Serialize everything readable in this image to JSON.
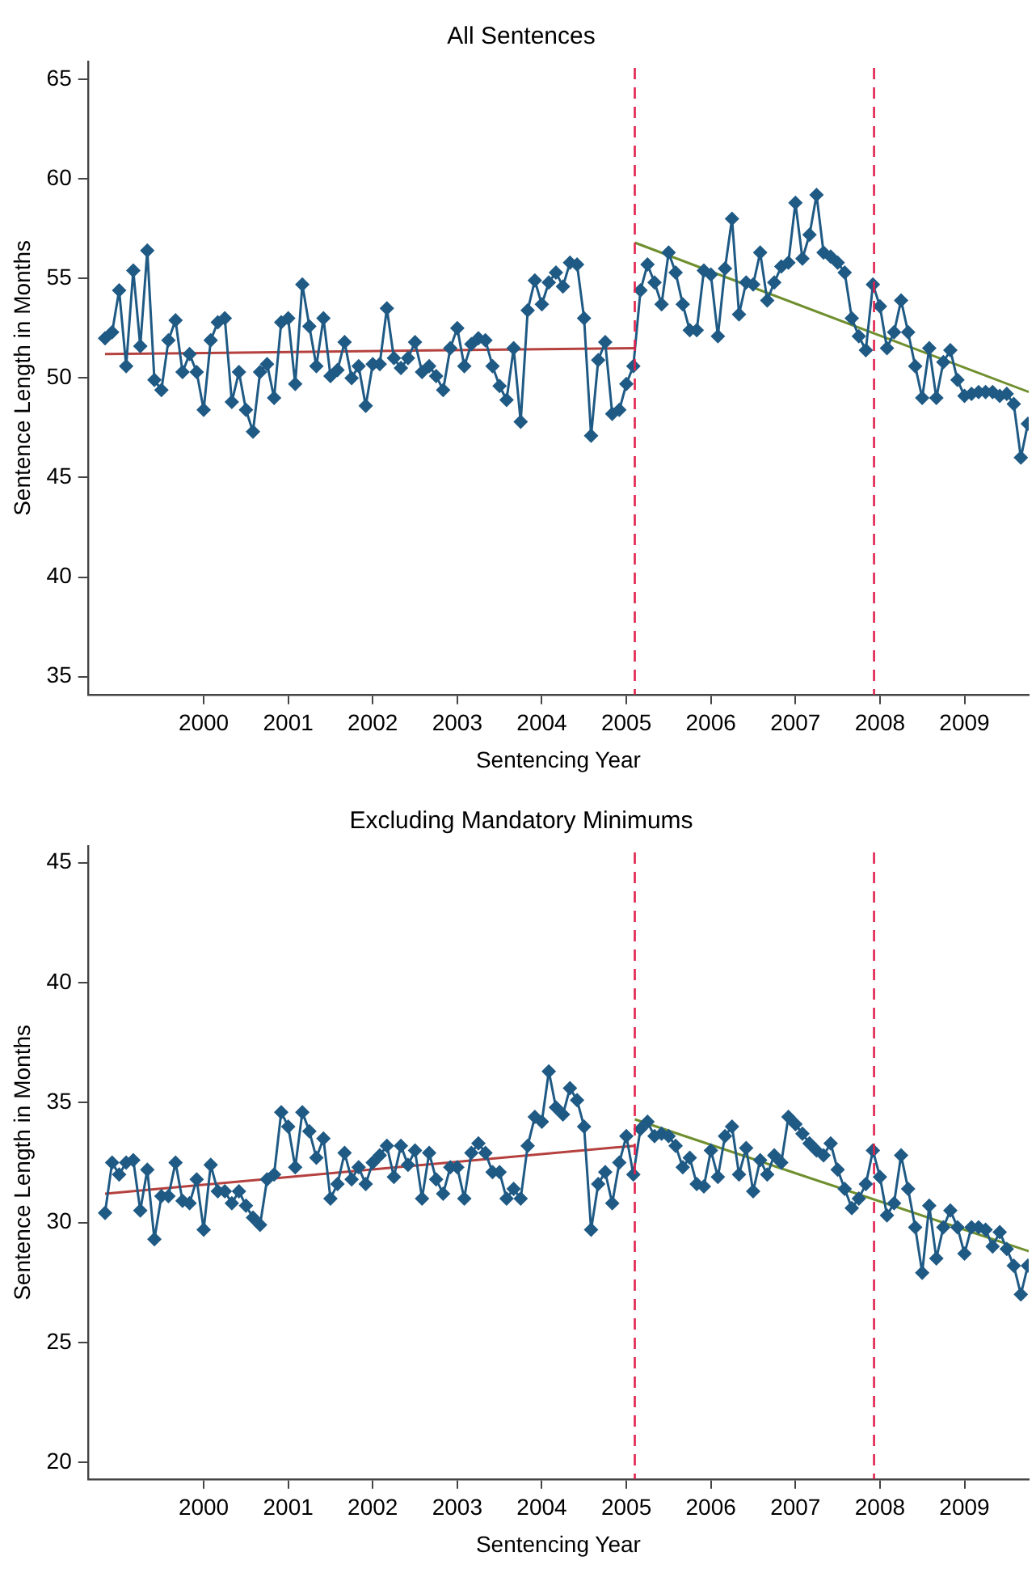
{
  "chart_data": [
    {
      "type": "line",
      "title": "All Sentences",
      "xlabel": "Sentencing Year",
      "ylabel": "Sentence Length in Months",
      "marker": "diamond",
      "grid": false,
      "legend": false,
      "x": [
        1998.833,
        1998.917,
        1999.0,
        1999.083,
        1999.167,
        1999.25,
        1999.333,
        1999.417,
        1999.5,
        1999.583,
        1999.667,
        1999.75,
        1999.833,
        1999.917,
        2000.0,
        2000.083,
        2000.167,
        2000.25,
        2000.333,
        2000.417,
        2000.5,
        2000.583,
        2000.667,
        2000.75,
        2000.833,
        2000.917,
        2001.0,
        2001.083,
        2001.167,
        2001.25,
        2001.333,
        2001.417,
        2001.5,
        2001.583,
        2001.667,
        2001.75,
        2001.833,
        2001.917,
        2002.0,
        2002.083,
        2002.167,
        2002.25,
        2002.333,
        2002.417,
        2002.5,
        2002.583,
        2002.667,
        2002.75,
        2002.833,
        2002.917,
        2003.0,
        2003.083,
        2003.167,
        2003.25,
        2003.333,
        2003.417,
        2003.5,
        2003.583,
        2003.667,
        2003.75,
        2003.833,
        2003.917,
        2004.0,
        2004.083,
        2004.167,
        2004.25,
        2004.333,
        2004.417,
        2004.5,
        2004.583,
        2004.667,
        2004.75,
        2004.833,
        2004.917,
        2005.0,
        2005.083,
        2005.167,
        2005.25,
        2005.333,
        2005.417,
        2005.5,
        2005.583,
        2005.667,
        2005.75,
        2005.833,
        2005.917,
        2006.0,
        2006.083,
        2006.167,
        2006.25,
        2006.333,
        2006.417,
        2006.5,
        2006.583,
        2006.667,
        2006.75,
        2006.833,
        2006.917,
        2007.0,
        2007.083,
        2007.167,
        2007.25,
        2007.333,
        2007.417,
        2007.5,
        2007.583,
        2007.667,
        2007.75,
        2007.833,
        2007.917,
        2008.0,
        2008.083,
        2008.167,
        2008.25,
        2008.333,
        2008.417,
        2008.5,
        2008.583,
        2008.667,
        2008.75,
        2008.833,
        2008.917,
        2009.0,
        2009.083,
        2009.167,
        2009.25,
        2009.333,
        2009.417,
        2009.5,
        2009.583,
        2009.667,
        2009.75
      ],
      "series": [
        {
          "color": "#1f5a85",
          "values": [
            52.0,
            52.3,
            54.4,
            50.6,
            55.4,
            51.6,
            56.4,
            49.9,
            49.4,
            51.9,
            52.9,
            50.3,
            51.2,
            50.3,
            48.4,
            51.9,
            52.8,
            53.0,
            48.8,
            50.3,
            48.4,
            47.3,
            50.3,
            50.7,
            49.0,
            52.8,
            53.0,
            49.7,
            54.7,
            52.6,
            50.6,
            53.0,
            50.1,
            50.4,
            51.8,
            50.0,
            50.6,
            48.6,
            50.7,
            50.7,
            53.5,
            51.0,
            50.5,
            51.0,
            51.8,
            50.3,
            50.6,
            50.1,
            49.4,
            51.5,
            52.5,
            50.6,
            51.7,
            52.0,
            51.9,
            50.6,
            49.6,
            48.9,
            51.5,
            47.8,
            53.4,
            54.9,
            53.7,
            54.8,
            55.3,
            54.6,
            55.8,
            55.7,
            53.0,
            47.1,
            50.9,
            51.8,
            48.2,
            48.4,
            49.7,
            50.6,
            54.4,
            55.7,
            54.8,
            53.7,
            56.3,
            55.3,
            53.7,
            52.4,
            52.4,
            55.4,
            55.2,
            52.1,
            55.5,
            58.0,
            53.2,
            54.8,
            54.7,
            56.3,
            53.9,
            54.8,
            55.6,
            55.8,
            58.8,
            56.0,
            57.2,
            59.2,
            56.3,
            56.1,
            55.8,
            55.3,
            53.0,
            52.1,
            51.4,
            54.7,
            53.6,
            51.5,
            52.3,
            53.9,
            52.3,
            50.6,
            49.0,
            51.5,
            49.0,
            50.8,
            51.4,
            49.9,
            49.1,
            49.2,
            49.3,
            49.3,
            49.3,
            49.1,
            49.2,
            48.7,
            46.0,
            47.7
          ]
        },
        {
          "type": "line",
          "marker": "none",
          "color": "#b5413f",
          "x": [
            1998.833,
            2005.1
          ],
          "values": [
            51.2,
            51.5
          ]
        },
        {
          "type": "line",
          "marker": "none",
          "color": "#6f8f2e",
          "x": [
            2005.1,
            2009.76
          ],
          "values": [
            56.8,
            49.3
          ]
        }
      ],
      "ref_lines": [
        {
          "axis": "x",
          "value": 2005.1,
          "color": "#e0234e",
          "line_style": "dashed"
        },
        {
          "axis": "x",
          "value": 2007.93,
          "color": "#e0234e",
          "line_style": "dashed"
        }
      ],
      "xlim": [
        1998.63,
        2009.76
      ],
      "xticks": [
        2000,
        2001,
        2002,
        2003,
        2004,
        2005,
        2006,
        2007,
        2008,
        2009
      ],
      "ylim": [
        34.1,
        65.9
      ],
      "yticks": [
        35,
        40,
        45,
        50,
        55,
        60,
        65
      ]
    },
    {
      "type": "line",
      "title": "Excluding Mandatory Minimums",
      "xlabel": "Sentencing Year",
      "ylabel": "Sentence Length in Months",
      "marker": "diamond",
      "grid": false,
      "legend": false,
      "x": [
        1998.833,
        1998.917,
        1999.0,
        1999.083,
        1999.167,
        1999.25,
        1999.333,
        1999.417,
        1999.5,
        1999.583,
        1999.667,
        1999.75,
        1999.833,
        1999.917,
        2000.0,
        2000.083,
        2000.167,
        2000.25,
        2000.333,
        2000.417,
        2000.5,
        2000.583,
        2000.667,
        2000.75,
        2000.833,
        2000.917,
        2001.0,
        2001.083,
        2001.167,
        2001.25,
        2001.333,
        2001.417,
        2001.5,
        2001.583,
        2001.667,
        2001.75,
        2001.833,
        2001.917,
        2002.0,
        2002.083,
        2002.167,
        2002.25,
        2002.333,
        2002.417,
        2002.5,
        2002.583,
        2002.667,
        2002.75,
        2002.833,
        2002.917,
        2003.0,
        2003.083,
        2003.167,
        2003.25,
        2003.333,
        2003.417,
        2003.5,
        2003.583,
        2003.667,
        2003.75,
        2003.833,
        2003.917,
        2004.0,
        2004.083,
        2004.167,
        2004.25,
        2004.333,
        2004.417,
        2004.5,
        2004.583,
        2004.667,
        2004.75,
        2004.833,
        2004.917,
        2005.0,
        2005.083,
        2005.167,
        2005.25,
        2005.333,
        2005.417,
        2005.5,
        2005.583,
        2005.667,
        2005.75,
        2005.833,
        2005.917,
        2006.0,
        2006.083,
        2006.167,
        2006.25,
        2006.333,
        2006.417,
        2006.5,
        2006.583,
        2006.667,
        2006.75,
        2006.833,
        2006.917,
        2007.0,
        2007.083,
        2007.167,
        2007.25,
        2007.333,
        2007.417,
        2007.5,
        2007.583,
        2007.667,
        2007.75,
        2007.833,
        2007.917,
        2008.0,
        2008.083,
        2008.167,
        2008.25,
        2008.333,
        2008.417,
        2008.5,
        2008.583,
        2008.667,
        2008.75,
        2008.833,
        2008.917,
        2009.0,
        2009.083,
        2009.167,
        2009.25,
        2009.333,
        2009.417,
        2009.5,
        2009.583,
        2009.667,
        2009.75
      ],
      "series": [
        {
          "color": "#1f5a85",
          "values": [
            30.4,
            32.5,
            32.0,
            32.5,
            32.6,
            30.5,
            32.2,
            29.3,
            31.1,
            31.1,
            32.5,
            30.9,
            30.8,
            31.8,
            29.7,
            32.4,
            31.3,
            31.3,
            30.8,
            31.3,
            30.7,
            30.2,
            29.9,
            31.8,
            32.0,
            34.6,
            34.0,
            32.3,
            34.6,
            33.8,
            32.7,
            33.5,
            31.0,
            31.6,
            32.9,
            31.8,
            32.3,
            31.6,
            32.5,
            32.8,
            33.2,
            31.9,
            33.2,
            32.4,
            33.0,
            31.0,
            32.9,
            31.8,
            31.2,
            32.3,
            32.3,
            31.0,
            32.9,
            33.3,
            32.9,
            32.1,
            32.1,
            31.0,
            31.4,
            31.0,
            33.2,
            34.4,
            34.2,
            36.3,
            34.8,
            34.5,
            35.6,
            35.1,
            34.0,
            29.7,
            31.6,
            32.1,
            30.8,
            32.5,
            33.6,
            32.0,
            33.9,
            34.2,
            33.6,
            33.7,
            33.6,
            33.2,
            32.3,
            32.7,
            31.6,
            31.5,
            33.0,
            31.9,
            33.6,
            34.0,
            32.0,
            33.1,
            31.3,
            32.6,
            32.0,
            32.8,
            32.5,
            34.4,
            34.1,
            33.7,
            33.3,
            33.0,
            32.8,
            33.3,
            32.2,
            31.4,
            30.6,
            31.0,
            31.6,
            33.0,
            31.9,
            30.3,
            30.8,
            32.8,
            31.4,
            29.8,
            27.9,
            30.7,
            28.5,
            29.8,
            30.5,
            29.8,
            28.7,
            29.8,
            29.8,
            29.7,
            29.0,
            29.6,
            28.9,
            28.2,
            27.0,
            28.2
          ]
        },
        {
          "type": "line",
          "marker": "none",
          "color": "#b5413f",
          "x": [
            1998.833,
            2005.1
          ],
          "values": [
            31.2,
            33.2
          ]
        },
        {
          "type": "line",
          "marker": "none",
          "color": "#6f8f2e",
          "x": [
            2005.1,
            2009.76
          ],
          "values": [
            34.3,
            28.8
          ]
        }
      ],
      "ref_lines": [
        {
          "axis": "x",
          "value": 2005.1,
          "color": "#e0234e",
          "line_style": "dashed"
        },
        {
          "axis": "x",
          "value": 2007.93,
          "color": "#e0234e",
          "line_style": "dashed"
        }
      ],
      "xlim": [
        1998.63,
        2009.76
      ],
      "xticks": [
        2000,
        2001,
        2002,
        2003,
        2004,
        2005,
        2006,
        2007,
        2008,
        2009
      ],
      "ylim": [
        19.3,
        45.7
      ],
      "yticks": [
        20,
        25,
        30,
        35,
        40,
        45
      ]
    }
  ]
}
